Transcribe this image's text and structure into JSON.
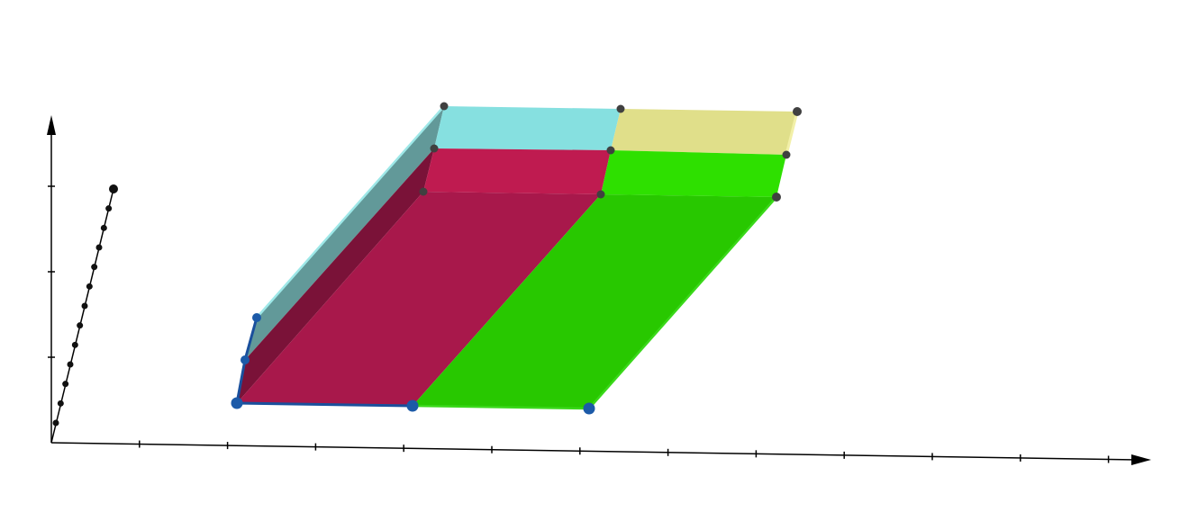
{
  "scene": {
    "background": "#ffffff",
    "axis_color": "#000000",
    "outline_color": "#1a4f9c",
    "colors": {
      "crimson_front": "#a8184b",
      "crimson_wall": "#7a1238",
      "crimson_top": "#bf1b50",
      "green_front": "#28c800",
      "green_top": "#2ee000",
      "cyan_top": "#86e0e0",
      "cyan_side": "#5a9393",
      "cyan_side_light": "#9ee8e8",
      "yellow_top": "#e0df8a",
      "yellow_edge": "#f2f0a8",
      "vertex_dark": "#404040",
      "vertex_blue": "#1c5aa8",
      "z_axis_dots": "#111111"
    },
    "vertex_groups": {
      "blue_vertices": 5,
      "dark_vertices": 9,
      "diagonal_axis_points": 13
    }
  }
}
